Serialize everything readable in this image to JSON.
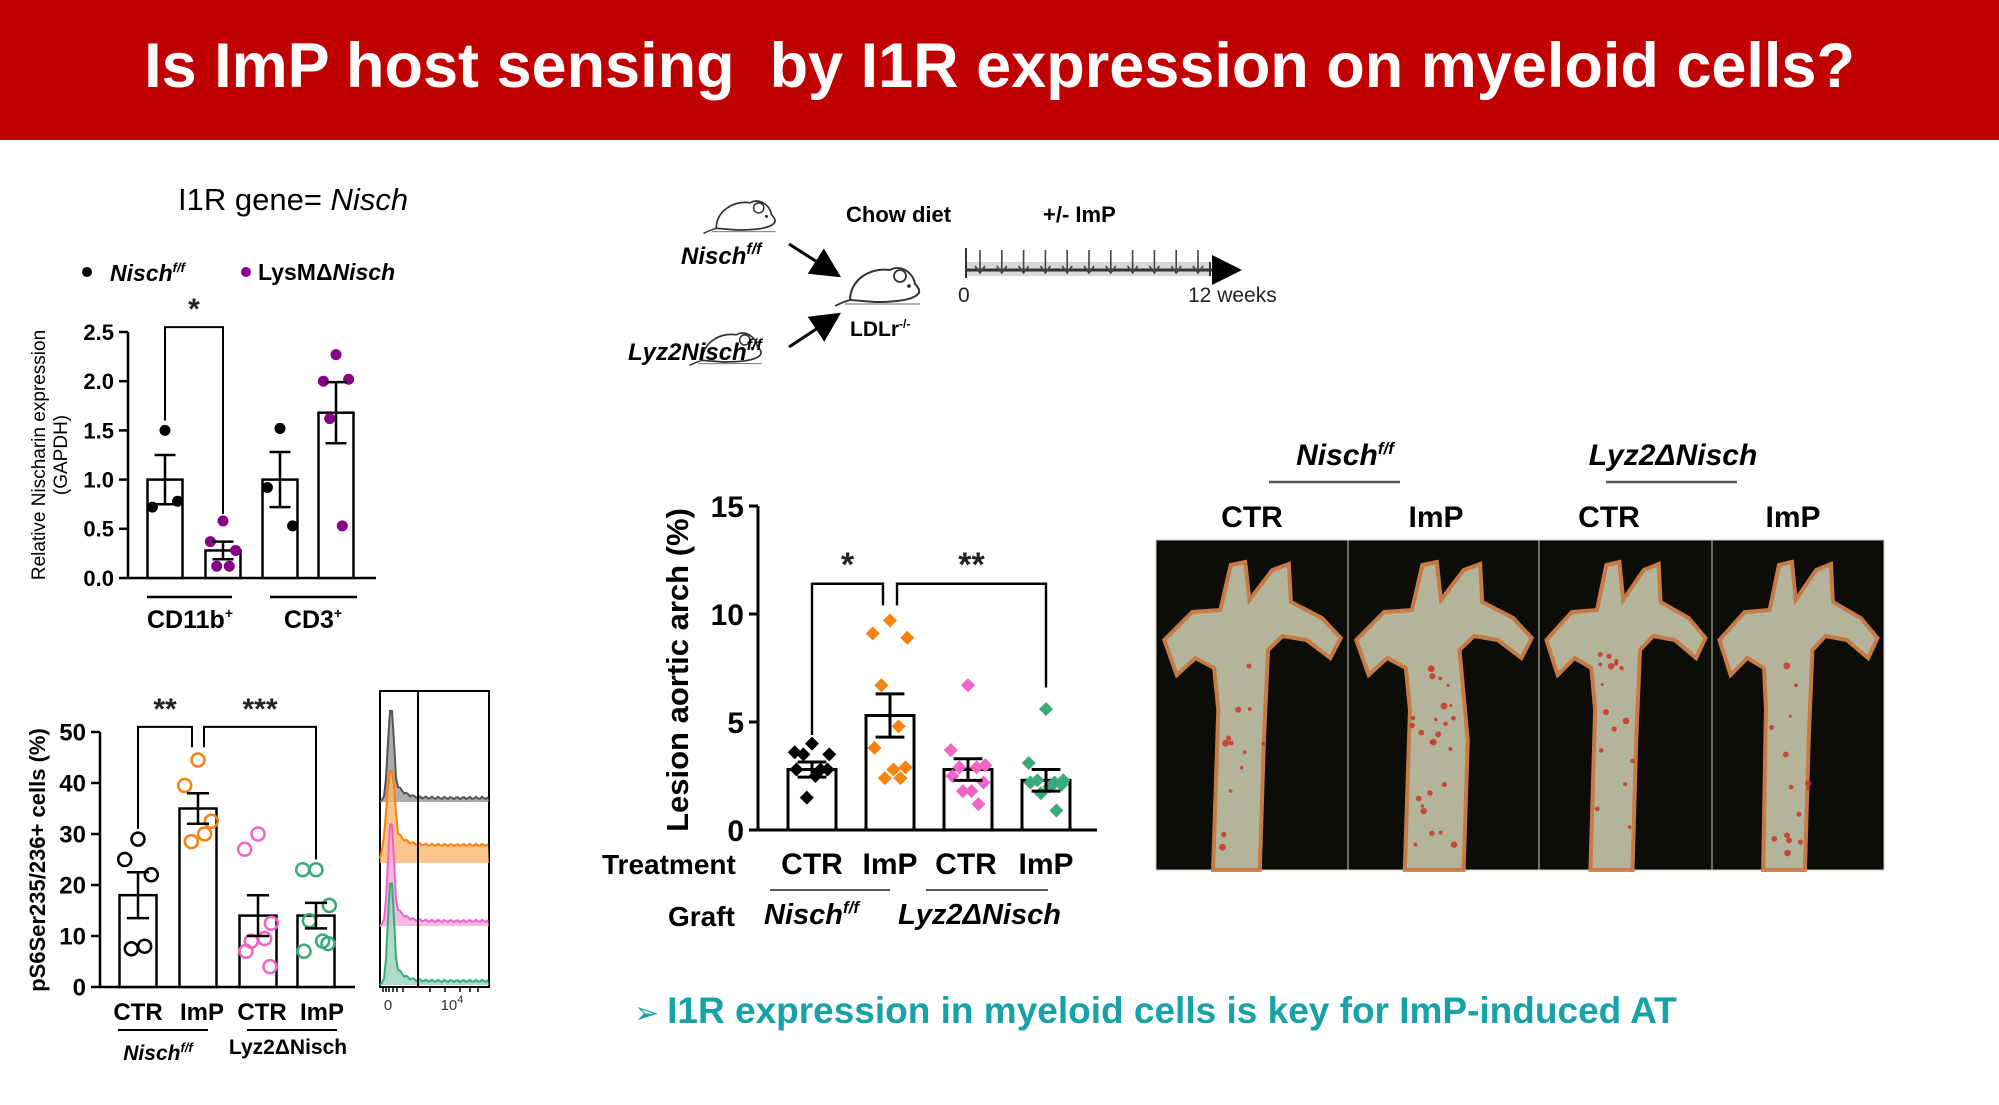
{
  "title": "Is ImP host sensing  by I1R expression on myeloid cells?",
  "subtitle": {
    "prefix": "I1R gene= ",
    "gene": "Nisch"
  },
  "legend": {
    "wt_label": "Nisch",
    "wt_sup": "f/f",
    "ko_prefix": "LysMΔ",
    "ko_gene": "Nisch"
  },
  "schematic": {
    "donor1": "Nisch",
    "donor1_sup": "f/f",
    "donor2": "Lyz2Nisch",
    "donor2_sup": "f/f",
    "recipient": "LDLr",
    "recipient_sup": "-/-",
    "diet": "Chow diet",
    "treatment": "+/- ImP",
    "start": "0",
    "end": "12 weeks"
  },
  "photos": {
    "group1": "Nisch",
    "group1_sup": "f/f",
    "group2": "Lyz2ΔNisch",
    "labels": [
      "CTR",
      "ImP",
      "CTR",
      "ImP"
    ]
  },
  "conclusion": {
    "bullet": "➢",
    "text": "I1R expression in myeloid cells is key for ImP-induced AT"
  },
  "colors": {
    "title_bg": "#C00000",
    "purple": "#880088",
    "orange": "#F7820F",
    "pink": "#F064C8",
    "green": "#3AAA78",
    "teal": "#17A2A8"
  },
  "chart_data": [
    {
      "type": "bar",
      "title": "",
      "ylabel": "Relative Nischarin expression",
      "ylabel2": "(GAPDH)",
      "ylim": [
        0,
        2.5
      ],
      "yticks": [
        0,
        0.5,
        1.0,
        1.5,
        2.0,
        2.5
      ],
      "categories": [
        "CD11b+",
        "CD3+"
      ],
      "category_labels": [
        "CD11b",
        "CD3"
      ],
      "category_sup": "+",
      "series": [
        {
          "name": "Nisch f/f",
          "group": "CD11b+",
          "color": "#000000",
          "mean": 1.0,
          "sem": 0.25,
          "points": [
            1.5,
            0.72,
            0.78
          ]
        },
        {
          "name": "LysMΔNisch",
          "group": "CD11b+",
          "color": "#880088",
          "mean": 0.28,
          "sem": 0.09,
          "points": [
            0.58,
            0.37,
            0.28,
            0.12,
            0.12
          ]
        },
        {
          "name": "Nisch f/f",
          "group": "CD3+",
          "color": "#000000",
          "mean": 1.0,
          "sem": 0.28,
          "points": [
            1.52,
            0.92,
            0.53
          ]
        },
        {
          "name": "LysMΔNisch",
          "group": "CD3+",
          "color": "#880088",
          "mean": 1.68,
          "sem": 0.31,
          "points": [
            2.27,
            2.0,
            2.02,
            1.62,
            0.53
          ]
        }
      ],
      "significance": [
        {
          "from": 0,
          "to": 1,
          "level": 2.55,
          "left_end": 1.6,
          "right_end": 0.65,
          "label": "*"
        }
      ],
      "legend_position": "top"
    },
    {
      "type": "bar",
      "ylabel": "pS6Ser235/236+ cells (%)",
      "ylim": [
        0,
        50
      ],
      "yticks": [
        0,
        10,
        20,
        30,
        40,
        50
      ],
      "categories": [
        "CTR",
        "ImP",
        "CTR",
        "ImP"
      ],
      "groups": [
        "Nisch",
        "Lyz2ΔNisch"
      ],
      "group1_sup": "f/f",
      "series": [
        {
          "name": "Nisch f/f CTR",
          "color": "#000000",
          "mean": 18,
          "sem": 4.5,
          "points": [
            29,
            25,
            22,
            7.5,
            8
          ]
        },
        {
          "name": "Nisch f/f ImP",
          "color": "#F7820F",
          "mean": 35,
          "sem": 3,
          "points": [
            44.5,
            39.5,
            32.5,
            28.5,
            30
          ]
        },
        {
          "name": "Lyz2ΔNisch CTR",
          "color": "#F064C8",
          "mean": 14,
          "sem": 4,
          "points": [
            30,
            27,
            12.5,
            9,
            9.5,
            7,
            4
          ]
        },
        {
          "name": "Lyz2ΔNisch ImP",
          "color": "#3AAA78",
          "mean": 14,
          "sem": 2.5,
          "points": [
            23,
            23,
            16,
            13,
            9,
            7,
            8.5
          ]
        }
      ],
      "significance": [
        {
          "from": 0,
          "to": 1,
          "level": 51,
          "left_end": 31,
          "right_end": 47,
          "label": "**"
        },
        {
          "from": 1,
          "to": 3,
          "level": 51,
          "left_end": 47,
          "right_end": 25,
          "label": "***"
        }
      ],
      "histogram_ticks": [
        "0",
        "10",
        "4"
      ]
    },
    {
      "type": "bar",
      "ylabel": "Lesion aortic arch (%)",
      "ylim": [
        0,
        15
      ],
      "yticks": [
        0,
        5,
        10,
        15
      ],
      "row_labels": [
        "Treatment",
        "Graft"
      ],
      "categories": [
        "CTR",
        "ImP",
        "CTR",
        "ImP"
      ],
      "groups": [
        "Nisch",
        "Lyz2ΔNisch"
      ],
      "group1_sup": "f/f",
      "series": [
        {
          "name": "Nisch f/f CTR",
          "color": "#000000",
          "mean": 2.8,
          "sem": 0.35,
          "points": [
            4.0,
            3.6,
            3.5,
            3.5,
            2.8,
            2.8,
            2.8,
            2.5,
            1.5
          ]
        },
        {
          "name": "Nisch f/f ImP",
          "color": "#F7820F",
          "mean": 5.3,
          "sem": 1.0,
          "points": [
            9.7,
            9.1,
            8.9,
            6.7,
            4.8,
            3.8,
            2.9,
            2.8,
            2.4,
            2.4
          ]
        },
        {
          "name": "Lyz2ΔNisch CTR",
          "color": "#F064C8",
          "mean": 2.8,
          "sem": 0.5,
          "points": [
            6.7,
            3.7,
            3.0,
            2.9,
            2.9,
            2.5,
            2.2,
            1.8,
            1.8,
            1.2
          ]
        },
        {
          "name": "Lyz2ΔNisch ImP",
          "color": "#3AAA78",
          "mean": 2.3,
          "sem": 0.5,
          "points": [
            5.6,
            3.1,
            2.3,
            2.3,
            2.2,
            2.2,
            2.1,
            2.0,
            1.7,
            0.9
          ]
        }
      ],
      "significance": [
        {
          "from": 0,
          "to": 1,
          "level": 11.4,
          "left_end": 4.4,
          "right_end": 10.4,
          "label": "*"
        },
        {
          "from": 1,
          "to": 3,
          "level": 11.4,
          "left_end": 10.4,
          "right_end": 6.6,
          "label": "**"
        }
      ]
    }
  ]
}
